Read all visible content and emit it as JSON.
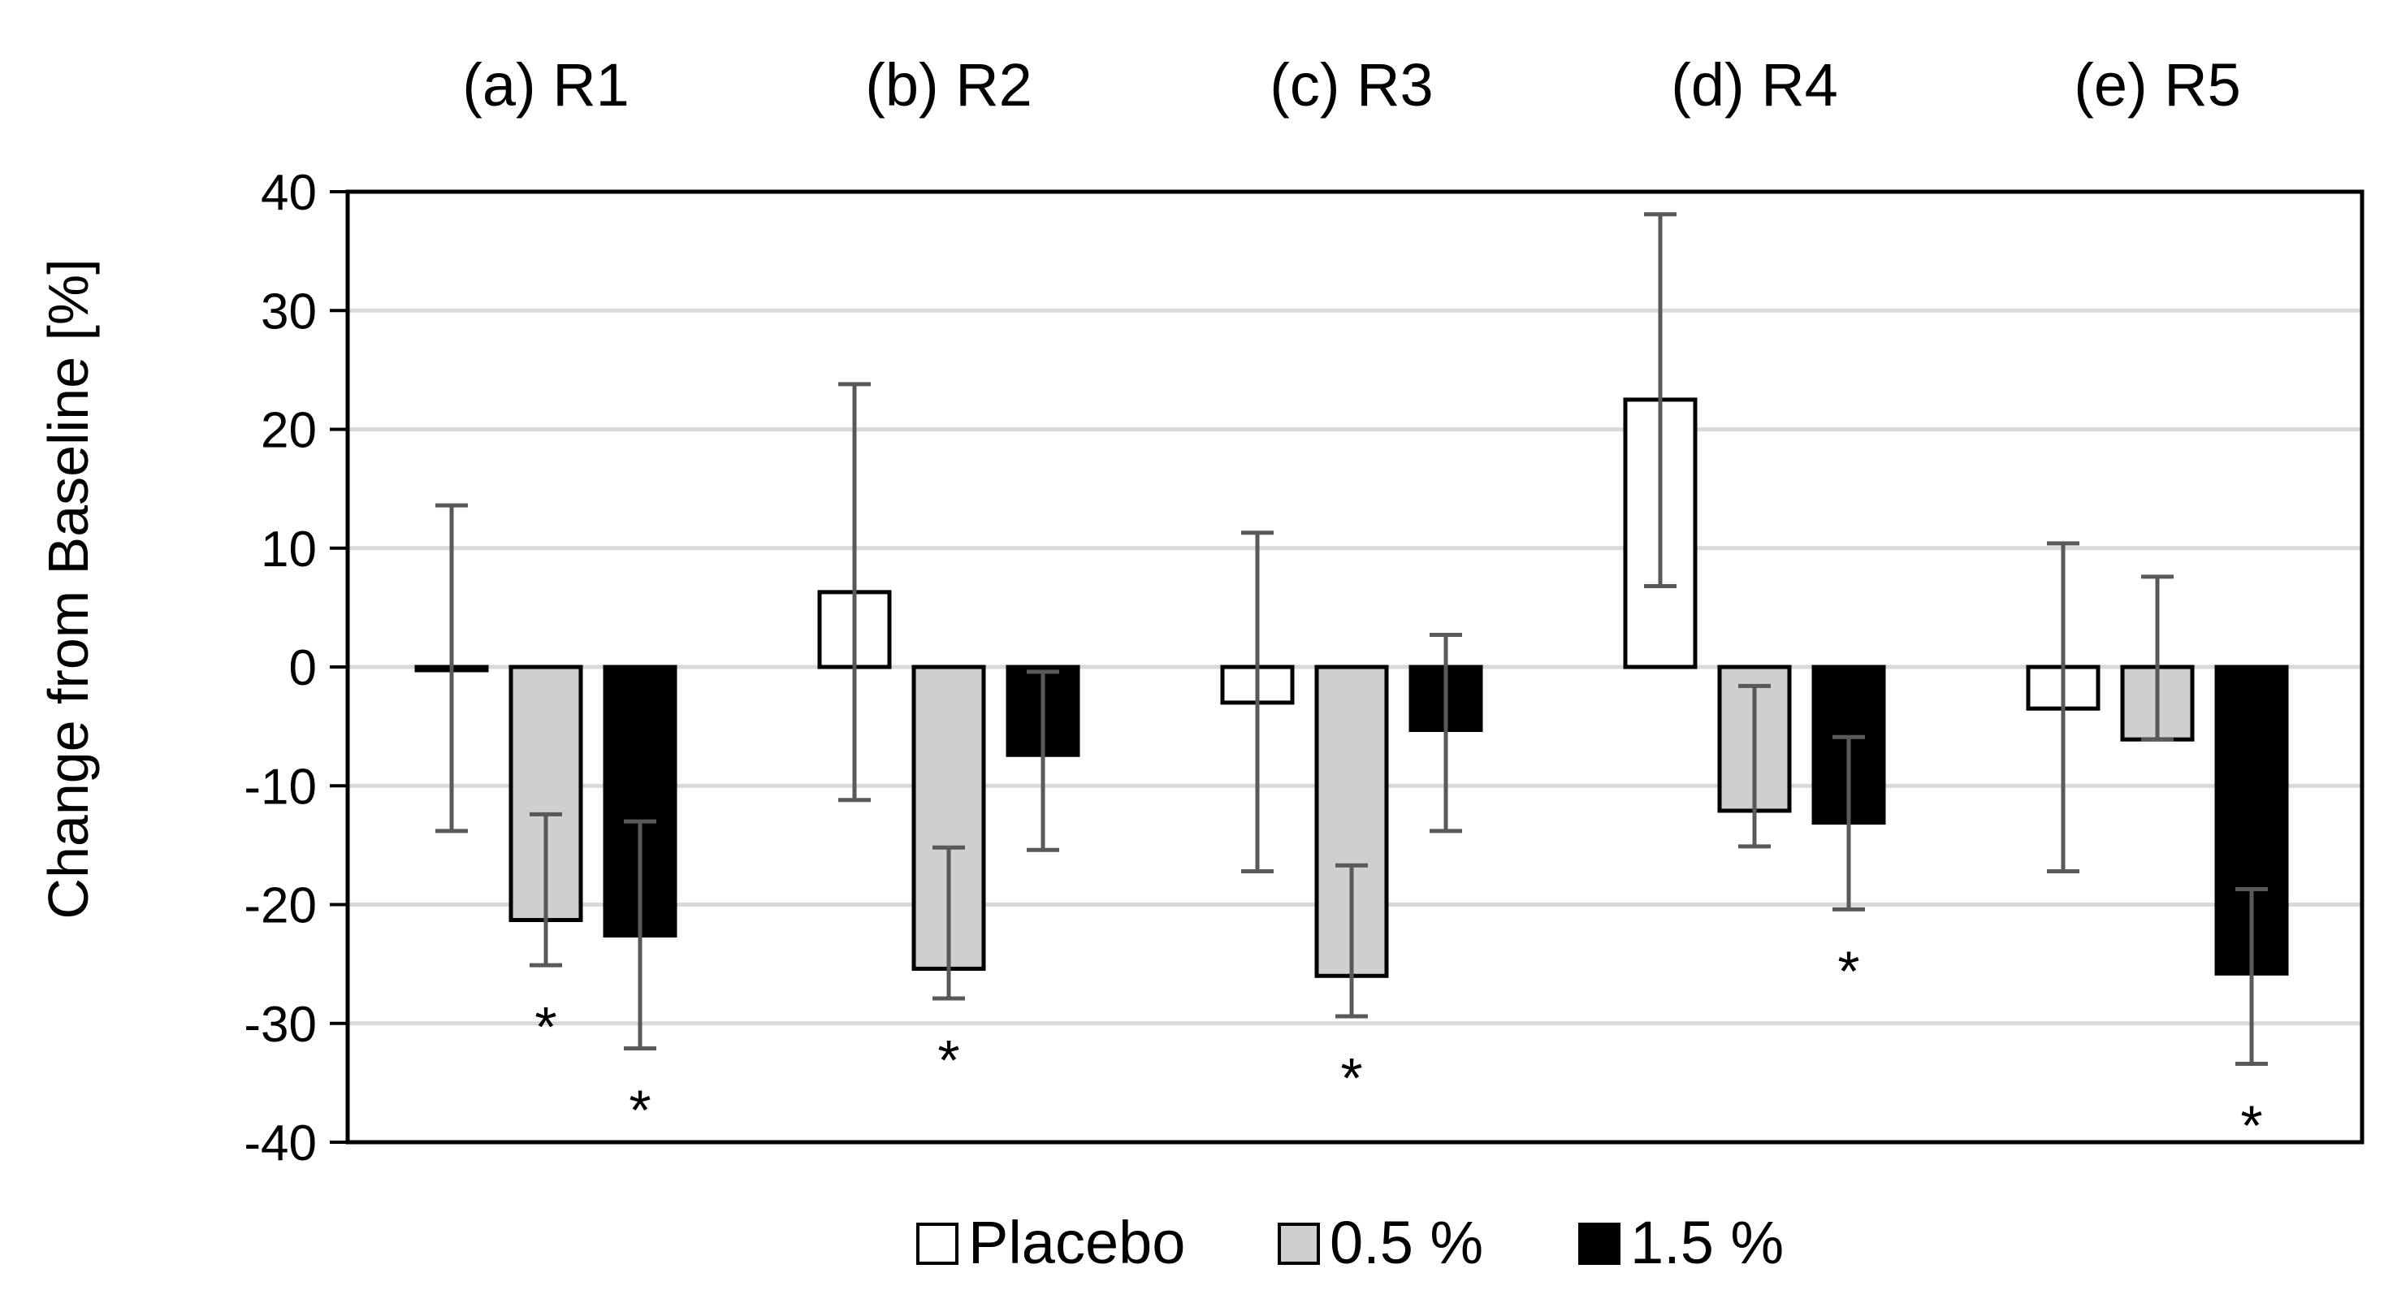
{
  "chart_data": {
    "type": "bar",
    "ylabel": "Change from Baseline [%]",
    "ylim": [
      -40,
      40
    ],
    "yticks": [
      "40",
      "30",
      "20",
      "10",
      "0",
      "-10",
      "-20",
      "-30",
      "-40"
    ],
    "grid": true,
    "legend_position": "bottom",
    "categories": [
      "(a) R1",
      "(b) R2",
      "(c) R3",
      "(d) R4",
      "(e) R5"
    ],
    "series": [
      {
        "name": "Placebo",
        "color": "#ffffff",
        "values": [
          -0.2,
          6.3,
          -3,
          22.5,
          -3.5
        ],
        "err_low": [
          -13.8,
          -11.2,
          -17.2,
          6.8,
          -17.2
        ],
        "err_high": [
          13.6,
          23.8,
          11.3,
          38.1,
          10.4
        ],
        "significant": [
          false,
          false,
          false,
          false,
          false
        ]
      },
      {
        "name": "0.5 %",
        "color": "#d0cece",
        "values": [
          -21.3,
          -25.4,
          -26,
          -12.1,
          -6.1
        ],
        "err_low": [
          -25.1,
          -27.9,
          -29.4,
          -15.1,
          -6.1
        ],
        "err_high": [
          -12.4,
          -15.2,
          -16.7,
          -1.6,
          7.6
        ],
        "significant": [
          true,
          true,
          true,
          false,
          false
        ]
      },
      {
        "name": "1.5 %",
        "color": "#000000",
        "values": [
          -22.6,
          -7.4,
          -5.3,
          -13.1,
          -25.8
        ],
        "err_low": [
          -32.1,
          -15.4,
          -13.8,
          -20.4,
          -33.4
        ],
        "err_high": [
          -13,
          -0.4,
          2.7,
          -5.9,
          -18.7
        ],
        "significant": [
          true,
          false,
          false,
          true,
          true
        ]
      }
    ],
    "significance_marker": "*"
  }
}
